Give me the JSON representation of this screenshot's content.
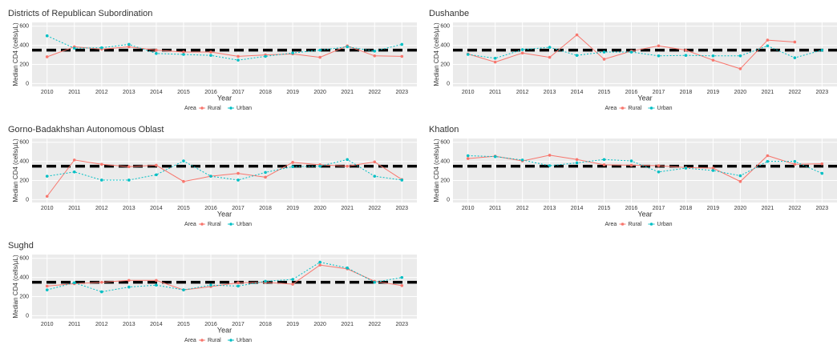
{
  "chart_data": [
    {
      "type": "line",
      "title": "Districts of Republican Subordination",
      "xlabel": "Year",
      "ylabel": "Median CD4 (cells/µL)",
      "x": [
        2010,
        2011,
        2012,
        2013,
        2014,
        2015,
        2016,
        2017,
        2018,
        2019,
        2020,
        2021,
        2022,
        2023
      ],
      "xlim": [
        2009.45,
        2023.55
      ],
      "ylim": [
        -30,
        640
      ],
      "yticks": [
        0,
        200,
        400,
        600
      ],
      "grid": true,
      "reference_line": 350,
      "legend_title": "Area",
      "series": [
        {
          "name": "Rural",
          "color": "#F8766D",
          "values": [
            280,
            385,
            360,
            385,
            350,
            330,
            330,
            285,
            300,
            310,
            275,
            395,
            290,
            285
          ]
        },
        {
          "name": "Urban",
          "color": "#00BFC4",
          "values": [
            500,
            370,
            375,
            410,
            315,
            305,
            295,
            245,
            285,
            320,
            350,
            385,
            340,
            410
          ]
        }
      ]
    },
    {
      "type": "line",
      "title": "Dushanbe",
      "xlabel": "Year",
      "ylabel": "Median CD4 (cells/µL)",
      "x": [
        2010,
        2011,
        2012,
        2013,
        2014,
        2015,
        2016,
        2017,
        2018,
        2019,
        2020,
        2021,
        2022,
        2023
      ],
      "xlim": [
        2009.45,
        2023.55
      ],
      "ylim": [
        -30,
        640
      ],
      "yticks": [
        0,
        200,
        400,
        600
      ],
      "grid": true,
      "reference_line": 350,
      "legend_title": "Area",
      "series": [
        {
          "name": "Rural",
          "color": "#F8766D",
          "values": [
            310,
            225,
            320,
            275,
            510,
            255,
            340,
            395,
            350,
            245,
            155,
            455,
            435,
            null
          ]
        },
        {
          "name": "Urban",
          "color": "#00BFC4",
          "values": [
            305,
            265,
            355,
            380,
            295,
            330,
            330,
            290,
            295,
            290,
            290,
            395,
            270,
            350
          ]
        }
      ]
    },
    {
      "type": "line",
      "title": "Gorno-Badakhshan Autonomous Oblast",
      "xlabel": "Year",
      "ylabel": "Median CD4 (cells/µL)",
      "x": [
        2010,
        2011,
        2012,
        2013,
        2014,
        2015,
        2016,
        2017,
        2018,
        2019,
        2020,
        2021,
        2022,
        2023
      ],
      "xlim": [
        2009.45,
        2023.55
      ],
      "ylim": [
        -30,
        640
      ],
      "yticks": [
        0,
        200,
        400,
        600
      ],
      "grid": true,
      "reference_line": 350,
      "legend_title": "Area",
      "series": [
        {
          "name": "Rural",
          "color": "#F8766D",
          "values": [
            35,
            415,
            370,
            345,
            360,
            190,
            245,
            275,
            235,
            390,
            365,
            350,
            395,
            210
          ]
        },
        {
          "name": "Urban",
          "color": "#00BFC4",
          "values": [
            245,
            290,
            205,
            205,
            260,
            405,
            245,
            205,
            285,
            345,
            350,
            420,
            245,
            205
          ]
        }
      ]
    },
    {
      "type": "line",
      "title": "Khatlon",
      "xlabel": "Year",
      "ylabel": "Median CD4 (cells/µL)",
      "x": [
        2010,
        2011,
        2012,
        2013,
        2014,
        2015,
        2016,
        2017,
        2018,
        2019,
        2020,
        2021,
        2022,
        2023
      ],
      "xlim": [
        2009.45,
        2023.55
      ],
      "ylim": [
        -30,
        640
      ],
      "yticks": [
        0,
        200,
        400,
        600
      ],
      "grid": true,
      "reference_line": 350,
      "legend_title": "Area",
      "series": [
        {
          "name": "Rural",
          "color": "#F8766D",
          "values": [
            430,
            455,
            405,
            465,
            420,
            365,
            360,
            355,
            335,
            330,
            190,
            460,
            370,
            375
          ]
        },
        {
          "name": "Urban",
          "color": "#00BFC4",
          "values": [
            460,
            450,
            415,
            355,
            385,
            420,
            405,
            290,
            330,
            305,
            250,
            400,
            400,
            275
          ]
        }
      ]
    },
    {
      "type": "line",
      "title": "Sughd",
      "xlabel": "Year",
      "ylabel": "Median CD4 (cells/µL)",
      "x": [
        2010,
        2011,
        2012,
        2013,
        2014,
        2015,
        2016,
        2017,
        2018,
        2019,
        2020,
        2021,
        2022,
        2023
      ],
      "xlim": [
        2009.45,
        2023.55
      ],
      "ylim": [
        -30,
        640
      ],
      "yticks": [
        0,
        200,
        400,
        600
      ],
      "grid": true,
      "reference_line": 350,
      "legend_title": "Area",
      "series": [
        {
          "name": "Rural",
          "color": "#F8766D",
          "values": [
            310,
            335,
            350,
            370,
            370,
            270,
            305,
            345,
            350,
            330,
            530,
            490,
            360,
            315
          ]
        },
        {
          "name": "Urban",
          "color": "#00BFC4",
          "values": [
            270,
            345,
            250,
            300,
            320,
            270,
            320,
            310,
            360,
            380,
            560,
            500,
            350,
            400
          ]
        }
      ]
    }
  ]
}
